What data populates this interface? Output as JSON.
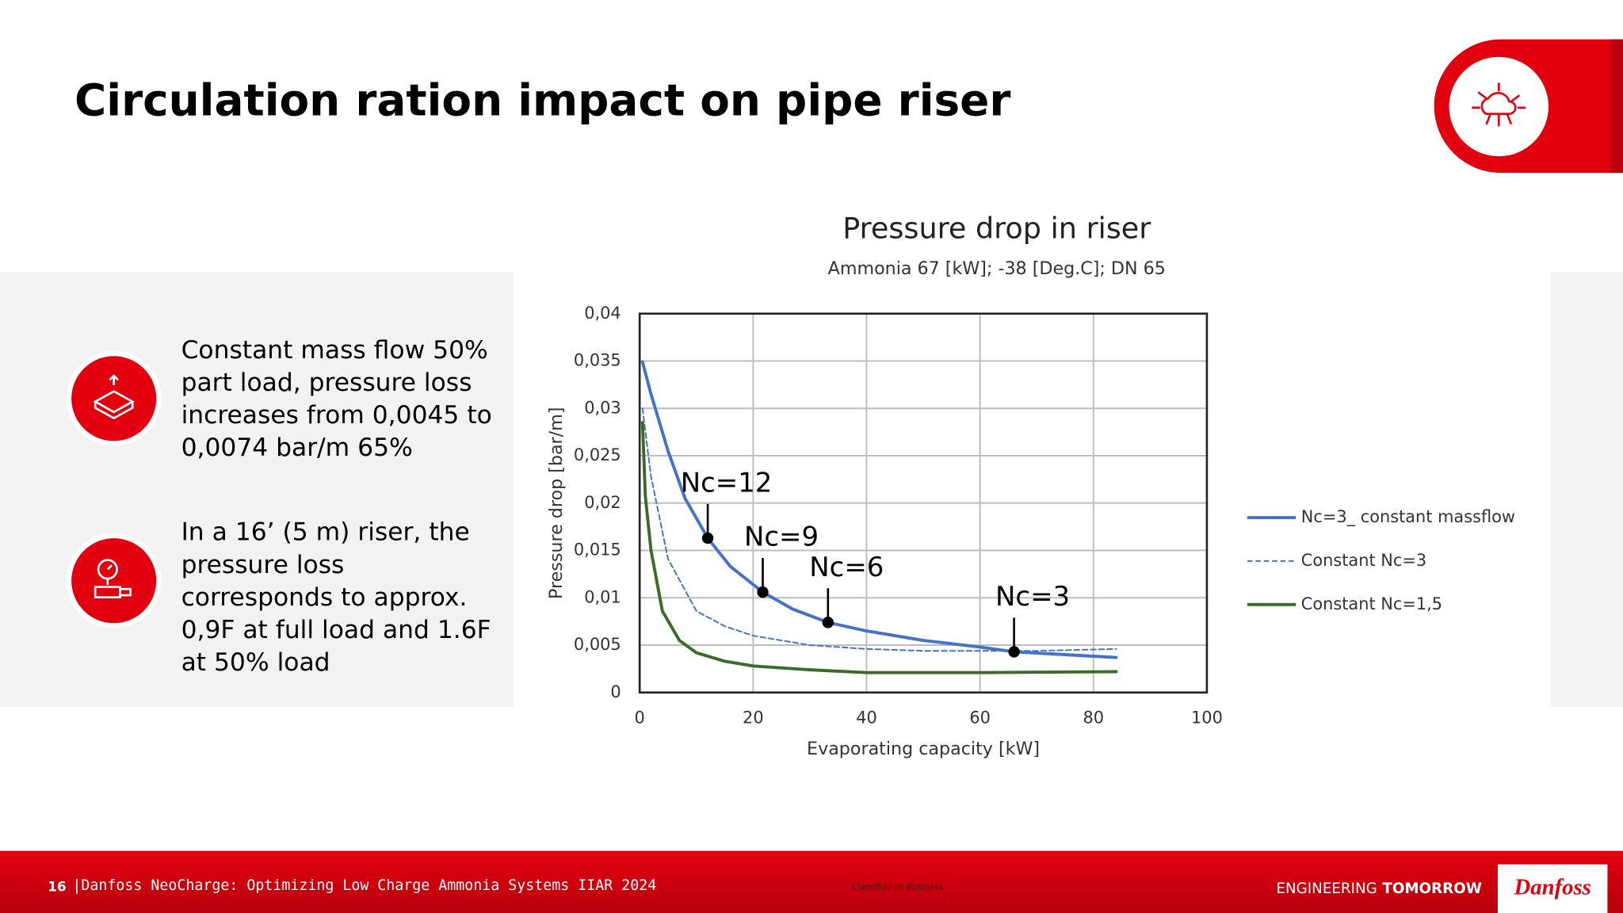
{
  "slide": {
    "title": "Circulation ration impact on pipe riser",
    "points": [
      {
        "lines": [
          "Constant mass flow 50%",
          "part load, pressure loss",
          "increases from 0,0045 to",
          "0,0074 bar/m 65%"
        ]
      },
      {
        "lines": [
          "In a 16’ (5 m) riser, the",
          "pressure loss",
          "corresponds to approx.",
          "0,9F at full load and 1.6F",
          "at 50% load"
        ]
      }
    ],
    "footer": {
      "page": "16",
      "text": "|Danfoss NeoCharge: Optimizing Low Charge Ammonia Systems IIAR 2024",
      "classification": "Classified as Business",
      "tagline_1": "ENGINEERING",
      "tagline_2": "TOMORROW",
      "logo": "Danfoss"
    }
  },
  "chart_data": {
    "type": "line",
    "title": "Pressure drop in riser",
    "subtitle": "Ammonia 67 [kW]; -38 [Deg.C]; DN 65",
    "x_label": "Evaporating capacity [kW]",
    "y_label": "Pressure drop [bar/m]",
    "xlim": [
      0,
      100
    ],
    "xticks": [
      0,
      20,
      40,
      60,
      80,
      100
    ],
    "ylim": [
      0,
      0.04
    ],
    "yticks": [
      0,
      {
        "value": 0.005,
        "label": "0,005"
      },
      {
        "value": 0.01,
        "label": "0,01"
      },
      {
        "value": 0.015,
        "label": "0,015"
      },
      {
        "value": 0.02,
        "label": "0,02"
      },
      {
        "value": 0.025,
        "label": "0,025"
      },
      {
        "value": 0.03,
        "label": "0,03"
      },
      {
        "value": 0.035,
        "label": "0,035"
      },
      {
        "value": 0.04,
        "label": "0,04"
      }
    ],
    "grid": true,
    "legend": "right",
    "series": [
      {
        "name": "Nc=3_ constant massflow",
        "color": "#4472c4",
        "dash": false,
        "x": [
          0.5,
          2,
          5,
          8,
          12,
          16,
          21.7,
          27,
          33.2,
          40,
          50,
          60,
          66,
          75,
          84
        ],
        "values": [
          0.0349,
          0.0315,
          0.0255,
          0.0205,
          0.0163,
          0.0133,
          0.0106,
          0.0088,
          0.0074,
          0.0065,
          0.0055,
          0.0048,
          0.0043,
          0.004,
          0.0037
        ]
      },
      {
        "name": "Constant Nc=3",
        "color": "#4472c4",
        "dash": true,
        "x": [
          0.5,
          2,
          5,
          10,
          15,
          20,
          30,
          40,
          50,
          60,
          70,
          84
        ],
        "values": [
          0.03,
          0.0228,
          0.0141,
          0.0086,
          0.007,
          0.006,
          0.005,
          0.0046,
          0.0044,
          0.0044,
          0.0044,
          0.0046
        ]
      },
      {
        "name": "Constant Nc=1,5",
        "color": "#3a6b28",
        "dash": false,
        "x": [
          0.5,
          1,
          2,
          4,
          7,
          10,
          15,
          20,
          30,
          40,
          60,
          84
        ],
        "values": [
          0.0285,
          0.0207,
          0.015,
          0.0086,
          0.0055,
          0.0042,
          0.0033,
          0.0028,
          0.0024,
          0.0021,
          0.0021,
          0.0022
        ]
      }
    ],
    "annotations": [
      {
        "text": "Nc=12",
        "x": 12,
        "y": 0.0163
      },
      {
        "text": "Nc=9",
        "x": 21.7,
        "y": 0.0106
      },
      {
        "text": "Nc=6",
        "x": 33.2,
        "y": 0.0074
      },
      {
        "text": "Nc=3",
        "x": 66,
        "y": 0.0043
      }
    ]
  }
}
